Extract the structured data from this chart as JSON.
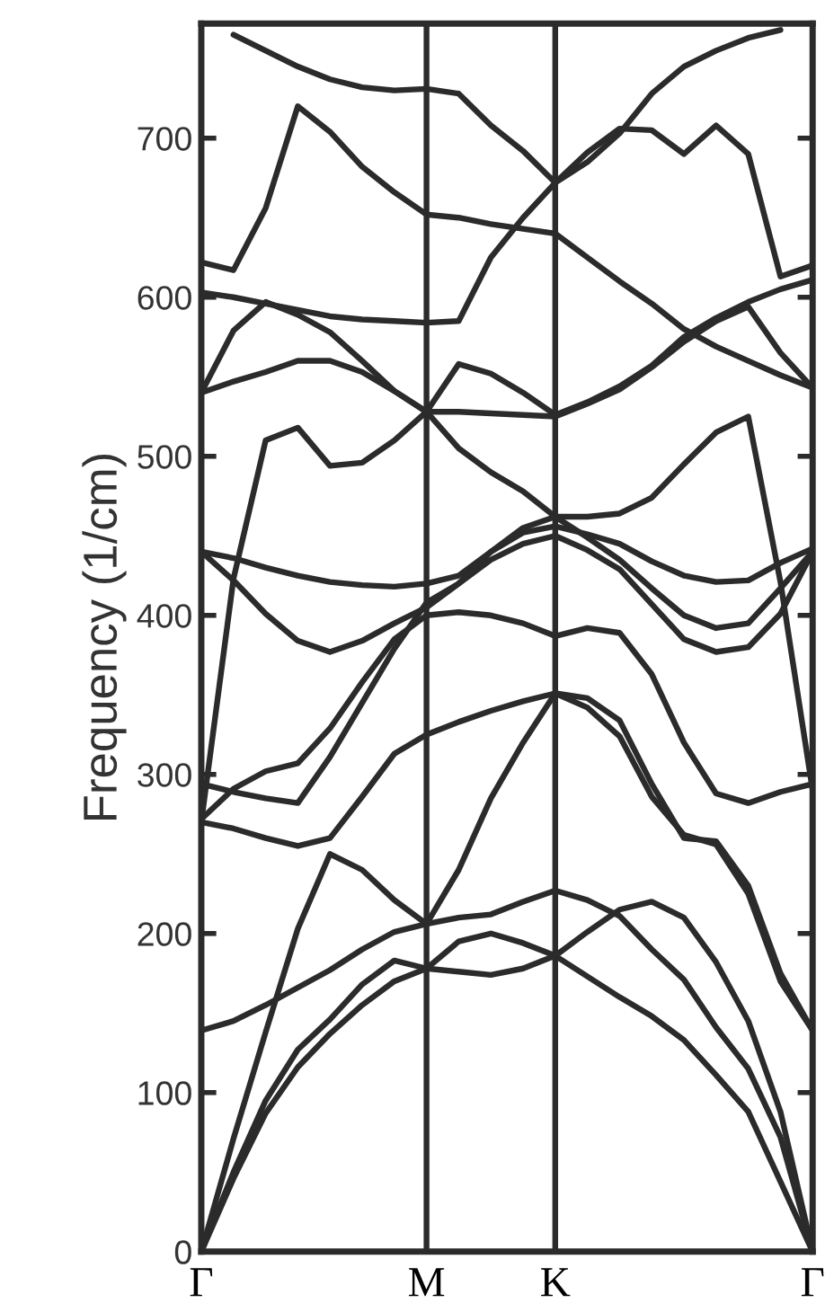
{
  "chart_data": {
    "type": "line",
    "ylabel": "Frequency (1/cm)",
    "categories": [
      "Γ",
      null,
      null,
      null,
      null,
      null,
      null,
      "M",
      null,
      null,
      null,
      "K",
      null,
      null,
      null,
      null,
      null,
      null,
      null,
      "Γ"
    ],
    "ylim": [
      0,
      772
    ],
    "yticks": [
      0,
      100,
      200,
      300,
      400,
      500,
      600,
      700
    ],
    "grid": false,
    "legend": false,
    "marker": "none",
    "line_style": "solid",
    "ref_lines": [
      {
        "axis": "x",
        "value": "M",
        "color": "#2b2b2b"
      },
      {
        "axis": "x",
        "value": "K",
        "color": "#2b2b2b"
      }
    ],
    "series": [
      {
        "color": "#2b2b2b",
        "values": [
          0,
          46,
          87,
          116,
          137,
          155,
          170,
          178,
          176,
          174,
          178,
          186,
          173,
          160,
          148,
          133,
          111,
          88,
          44,
          0
        ]
      },
      {
        "color": "#2b2b2b",
        "values": [
          0,
          50,
          95,
          127,
          146,
          168,
          183,
          178,
          195,
          200,
          194,
          186,
          201,
          215,
          220,
          210,
          182,
          145,
          88,
          0
        ]
      },
      {
        "color": "#2b2b2b",
        "values": [
          0,
          71,
          138,
          203,
          250,
          240,
          221,
          206,
          210,
          212,
          220,
          227,
          221,
          211,
          190,
          171,
          141,
          115,
          72,
          0
        ]
      },
      {
        "color": "#2b2b2b",
        "values": [
          139,
          145,
          155,
          166,
          177,
          190,
          201,
          206,
          240,
          285,
          320,
          351,
          342,
          324,
          286,
          262,
          256,
          225,
          170,
          139
        ]
      },
      {
        "color": "#2b2b2b",
        "values": [
          270,
          266,
          260,
          255,
          260,
          286,
          313,
          325,
          333,
          340,
          346,
          351,
          348,
          334,
          294,
          260,
          258,
          230,
          175,
          139
        ]
      },
      {
        "color": "#2b2b2b",
        "values": [
          272,
          291,
          302,
          307,
          329,
          358,
          385,
          400,
          402,
          400,
          395,
          387,
          392,
          389,
          363,
          320,
          288,
          282,
          289,
          294
        ]
      },
      {
        "color": "#2b2b2b",
        "values": [
          294,
          289,
          285,
          282,
          311,
          345,
          379,
          408,
          420,
          435,
          445,
          450,
          441,
          429,
          407,
          385,
          377,
          380,
          401,
          440
        ]
      },
      {
        "color": "#2b2b2b",
        "values": [
          270,
          423,
          510,
          518,
          494,
          496,
          510,
          528,
          505,
          490,
          478,
          462,
          462,
          464,
          474,
          495,
          515,
          525,
          421,
          290
        ]
      },
      {
        "color": "#2b2b2b",
        "values": [
          440,
          436,
          430,
          425,
          421,
          419,
          418,
          420,
          425,
          440,
          452,
          456,
          451,
          445,
          434,
          425,
          421,
          422,
          433,
          442
        ]
      },
      {
        "color": "#2b2b2b",
        "values": [
          440,
          422,
          401,
          384,
          377,
          384,
          395,
          405,
          420,
          440,
          455,
          462,
          449,
          435,
          417,
          400,
          392,
          395,
          417,
          440
        ]
      },
      {
        "color": "#2b2b2b",
        "values": [
          540,
          579,
          597,
          589,
          578,
          560,
          541,
          528,
          558,
          552,
          540,
          526,
          534,
          544,
          557,
          575,
          587,
          597,
          605,
          611
        ]
      },
      {
        "color": "#2b2b2b",
        "values": [
          540,
          547,
          553,
          560,
          560,
          553,
          541,
          528,
          528,
          527,
          526,
          525,
          533,
          542,
          556,
          572,
          585,
          594,
          565,
          543
        ]
      },
      {
        "color": "#2b2b2b",
        "values": [
          603,
          600,
          596,
          592,
          588,
          586,
          585,
          584,
          585,
          625,
          650,
          672,
          691,
          706,
          705,
          690,
          708,
          690,
          613,
          620
        ]
      },
      {
        "color": "#2b2b2b",
        "values": [
          null,
          765,
          755,
          745,
          737,
          732,
          730,
          731,
          728,
          708,
          692,
          672,
          685,
          703,
          728,
          745,
          755,
          763,
          768,
          null
        ]
      },
      {
        "color": "#2b2b2b",
        "values": [
          622,
          617,
          656,
          720,
          704,
          682,
          666,
          652,
          650,
          646,
          643,
          640,
          625,
          610,
          596,
          580,
          569,
          560,
          551,
          543
        ]
      }
    ]
  }
}
